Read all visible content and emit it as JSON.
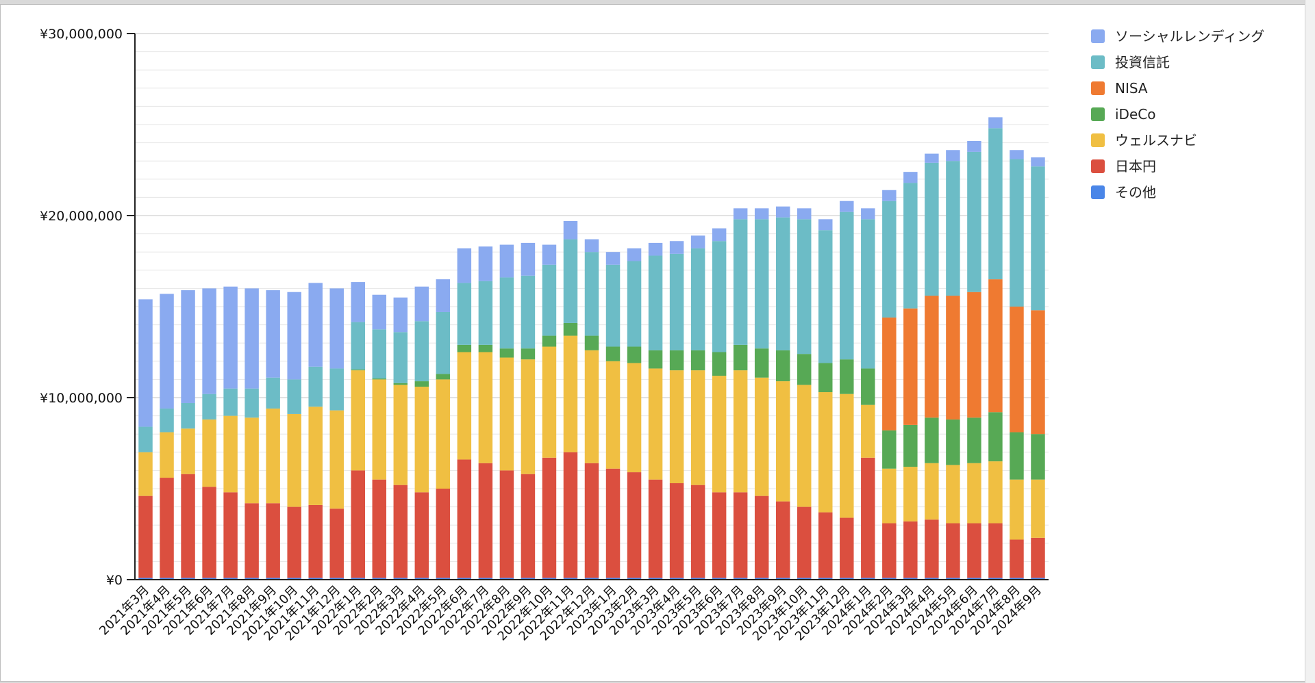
{
  "chart_data": {
    "type": "bar",
    "stacked": true,
    "ylim": [
      0,
      30000000
    ],
    "y_ticks": [
      {
        "value": 0,
        "label": "¥0"
      },
      {
        "value": 10000000,
        "label": "¥10,000,000"
      },
      {
        "value": 20000000,
        "label": "¥20,000,000"
      },
      {
        "value": 30000000,
        "label": "¥30,000,000"
      }
    ],
    "grid": true,
    "legend_position": "right",
    "categories": [
      "2021年3月",
      "2021年4月",
      "2021年5月",
      "2021年6月",
      "2021年7月",
      "2021年8月",
      "2021年9月",
      "2021年10月",
      "2021年11月",
      "2021年12月",
      "2022年1月",
      "2022年2月",
      "2022年3月",
      "2022年4月",
      "2022年5月",
      "2022年6月",
      "2022年7月",
      "2022年8月",
      "2022年9月",
      "2022年10月",
      "2022年11月",
      "2022年12月",
      "2023年1月",
      "2023年2月",
      "2023年3月",
      "2023年4月",
      "2023年5月",
      "2023年6月",
      "2023年7月",
      "2023年8月",
      "2023年9月",
      "2023年10月",
      "2023年11月",
      "2023年12月",
      "2024年1月",
      "2024年2月",
      "2024年3月",
      "2024年4月",
      "2024年5月",
      "2024年6月",
      "2024年7月",
      "2024年8月",
      "2024年9月"
    ],
    "series": [
      {
        "name": "その他",
        "color": "#4a86e8",
        "values": [
          100000,
          100000,
          100000,
          100000,
          100000,
          100000,
          100000,
          100000,
          100000,
          100000,
          100000,
          100000,
          100000,
          100000,
          100000,
          100000,
          100000,
          100000,
          100000,
          100000,
          100000,
          100000,
          100000,
          100000,
          100000,
          100000,
          100000,
          100000,
          100000,
          100000,
          100000,
          100000,
          100000,
          100000,
          100000,
          100000,
          100000,
          100000,
          100000,
          100000,
          100000,
          100000,
          100000
        ]
      },
      {
        "name": "日本円",
        "color": "#db4f3f",
        "values": [
          4500000,
          5500000,
          5700000,
          5000000,
          4700000,
          4100000,
          4100000,
          3900000,
          4000000,
          3800000,
          5900000,
          5400000,
          5100000,
          4700000,
          4900000,
          6500000,
          6300000,
          5900000,
          5700000,
          6600000,
          6900000,
          6300000,
          6000000,
          5800000,
          5400000,
          5200000,
          5100000,
          4700000,
          4700000,
          4500000,
          4200000,
          3900000,
          3600000,
          3300000,
          6600000,
          3000000,
          3100000,
          3200000,
          3000000,
          3000000,
          3000000,
          2100000,
          2200000
        ]
      },
      {
        "name": "ウェルスナビ",
        "color": "#f0bf42",
        "values": [
          2400000,
          2500000,
          2500000,
          3700000,
          4200000,
          4700000,
          5200000,
          5100000,
          5400000,
          5400000,
          5500000,
          5500000,
          5500000,
          5800000,
          6000000,
          5900000,
          6100000,
          6200000,
          6300000,
          6100000,
          6400000,
          6200000,
          5900000,
          6000000,
          6100000,
          6200000,
          6300000,
          6400000,
          6700000,
          6500000,
          6600000,
          6700000,
          6600000,
          6800000,
          2900000,
          3000000,
          3000000,
          3100000,
          3200000,
          3300000,
          3400000,
          3300000,
          3200000
        ]
      },
      {
        "name": "iDeCo",
        "color": "#57a955",
        "values": [
          0,
          0,
          0,
          0,
          0,
          0,
          0,
          0,
          0,
          0,
          50000,
          50000,
          100000,
          300000,
          300000,
          400000,
          400000,
          500000,
          600000,
          600000,
          700000,
          800000,
          800000,
          900000,
          1000000,
          1100000,
          1100000,
          1300000,
          1400000,
          1600000,
          1700000,
          1700000,
          1600000,
          1900000,
          2000000,
          2100000,
          2300000,
          2500000,
          2500000,
          2500000,
          2700000,
          2600000,
          2500000
        ]
      },
      {
        "name": "NISA",
        "color": "#ef7a31",
        "values": [
          0,
          0,
          0,
          0,
          0,
          0,
          0,
          0,
          0,
          0,
          0,
          0,
          0,
          0,
          0,
          0,
          0,
          0,
          0,
          0,
          0,
          0,
          0,
          0,
          0,
          0,
          0,
          0,
          0,
          0,
          0,
          0,
          0,
          0,
          0,
          6200000,
          6400000,
          6700000,
          6800000,
          6900000,
          7300000,
          6900000,
          6800000
        ]
      },
      {
        "name": "投資信託",
        "color": "#6cbcc6",
        "values": [
          1400000,
          1300000,
          1400000,
          1400000,
          1500000,
          1600000,
          1700000,
          1900000,
          2200000,
          2300000,
          2600000,
          2700000,
          2800000,
          3300000,
          3400000,
          3400000,
          3500000,
          3900000,
          4000000,
          3900000,
          4600000,
          4600000,
          4500000,
          4700000,
          5200000,
          5300000,
          5600000,
          6100000,
          6900000,
          7100000,
          7300000,
          7400000,
          7300000,
          8100000,
          8200000,
          6400000,
          6900000,
          7300000,
          7400000,
          7700000,
          8300000,
          8100000,
          7900000
        ]
      },
      {
        "name": "ソーシャルレンディング",
        "color": "#8aaaf0",
        "values": [
          7000000,
          6300000,
          6200000,
          5800000,
          5600000,
          5500000,
          4800000,
          4800000,
          4600000,
          4400000,
          2200000,
          1900000,
          1900000,
          1900000,
          1800000,
          1900000,
          1900000,
          1800000,
          1800000,
          1100000,
          1000000,
          700000,
          700000,
          700000,
          700000,
          700000,
          700000,
          700000,
          600000,
          600000,
          600000,
          600000,
          600000,
          600000,
          600000,
          600000,
          600000,
          500000,
          600000,
          600000,
          600000,
          500000,
          500000
        ]
      }
    ],
    "legend_order": [
      "ソーシャルレンディング",
      "投資信託",
      "NISA",
      "iDeCo",
      "ウェルスナビ",
      "日本円",
      "その他"
    ]
  }
}
